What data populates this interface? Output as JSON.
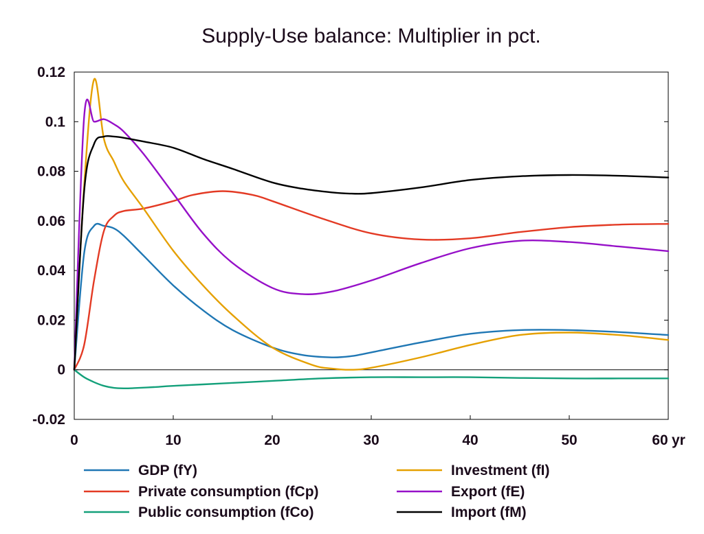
{
  "chart_data": {
    "type": "line",
    "title": "Supply-Use balance: Multiplier in pct.",
    "xlabel": "",
    "ylabel": "",
    "x_unit_label": "yr",
    "xlim": [
      0,
      60
    ],
    "ylim": [
      -0.02,
      0.12
    ],
    "x_ticks": [
      0,
      10,
      20,
      30,
      40,
      50,
      60
    ],
    "x_tick_labels": [
      "0",
      "10",
      "20",
      "30",
      "40",
      "50",
      "60"
    ],
    "y_ticks": [
      -0.02,
      0,
      0.02,
      0.04,
      0.06,
      0.08,
      0.1,
      0.12
    ],
    "y_tick_labels": [
      "-0.02",
      "0",
      "0.02",
      "0.04",
      "0.06",
      "0.08",
      "0.1",
      "0.12"
    ],
    "grid": false,
    "zero_line": true,
    "legend_position": "bottom",
    "series": [
      {
        "name": "GDP (fY)",
        "color": "#1f77b4",
        "x": [
          0,
          1,
          2,
          3,
          4,
          5,
          7,
          10,
          13,
          16,
          20,
          23,
          26,
          28,
          30,
          35,
          40,
          45,
          50,
          55,
          60
        ],
        "y": [
          0,
          0.047,
          0.058,
          0.058,
          0.057,
          0.054,
          0.046,
          0.034,
          0.024,
          0.016,
          0.009,
          0.006,
          0.005,
          0.0055,
          0.007,
          0.011,
          0.0145,
          0.016,
          0.016,
          0.0152,
          0.014
        ]
      },
      {
        "name": "Private consumption (fCp)",
        "color": "#e33a24",
        "x": [
          0,
          1,
          2,
          3,
          4,
          5,
          7,
          10,
          12,
          15,
          18,
          20,
          25,
          30,
          35,
          40,
          45,
          50,
          55,
          60
        ],
        "y": [
          0,
          0.01,
          0.036,
          0.056,
          0.062,
          0.064,
          0.065,
          0.068,
          0.0705,
          0.072,
          0.0705,
          0.068,
          0.061,
          0.055,
          0.0525,
          0.053,
          0.0555,
          0.0575,
          0.0585,
          0.0588
        ]
      },
      {
        "name": "Public consumption (fCo)",
        "color": "#13a07a",
        "x": [
          0,
          1,
          2,
          3,
          4,
          5,
          6,
          8,
          10,
          15,
          20,
          25,
          30,
          35,
          40,
          45,
          50,
          55,
          60
        ],
        "y": [
          0,
          -0.003,
          -0.005,
          -0.0065,
          -0.0073,
          -0.0075,
          -0.0074,
          -0.007,
          -0.0065,
          -0.0055,
          -0.0045,
          -0.0035,
          -0.003,
          -0.003,
          -0.003,
          -0.0033,
          -0.0035,
          -0.0035,
          -0.0035
        ]
      },
      {
        "name": "Investment (fI)",
        "color": "#e5a000",
        "x": [
          0,
          1,
          2,
          3,
          4,
          5,
          7,
          10,
          13,
          16,
          20,
          24,
          26,
          28,
          30,
          35,
          40,
          45,
          50,
          55,
          60
        ],
        "y": [
          0,
          0.074,
          0.117,
          0.093,
          0.084,
          0.076,
          0.065,
          0.048,
          0.034,
          0.022,
          0.009,
          0.002,
          0.0005,
          0,
          0.0008,
          0.005,
          0.01,
          0.014,
          0.015,
          0.014,
          0.012
        ]
      },
      {
        "name": "Export (fE)",
        "color": "#9610c8",
        "x": [
          0,
          1,
          2,
          3,
          4,
          5,
          7,
          10,
          13,
          16,
          20,
          23,
          26,
          30,
          35,
          40,
          45,
          50,
          55,
          60
        ],
        "y": [
          0,
          0.102,
          0.1,
          0.101,
          0.099,
          0.096,
          0.087,
          0.071,
          0.055,
          0.043,
          0.033,
          0.0305,
          0.0315,
          0.036,
          0.043,
          0.049,
          0.052,
          0.0515,
          0.0497,
          0.0478
        ]
      },
      {
        "name": "Import (fM)",
        "color": "#000000",
        "x": [
          0,
          1,
          2,
          3,
          4,
          5,
          7,
          10,
          13,
          16,
          20,
          23,
          26,
          28,
          30,
          35,
          40,
          45,
          50,
          55,
          60
        ],
        "y": [
          0,
          0.072,
          0.091,
          0.094,
          0.094,
          0.0935,
          0.092,
          0.0895,
          0.085,
          0.081,
          0.0755,
          0.073,
          0.0715,
          0.071,
          0.0712,
          0.0735,
          0.0765,
          0.078,
          0.0785,
          0.0782,
          0.0775
        ]
      }
    ]
  }
}
